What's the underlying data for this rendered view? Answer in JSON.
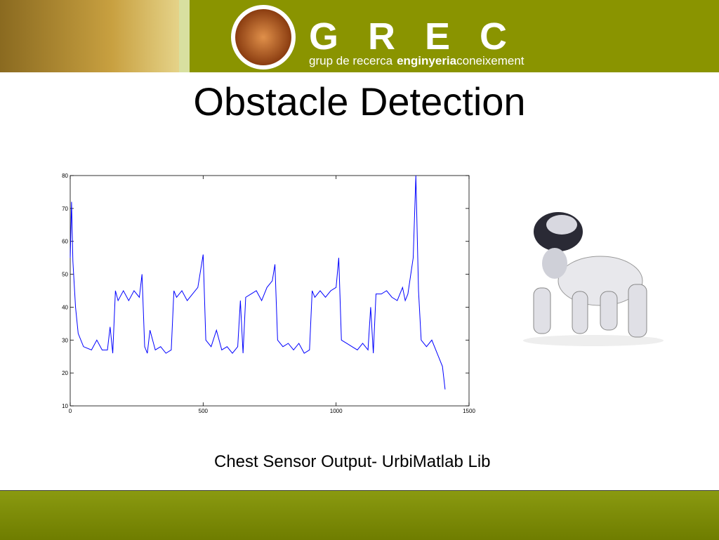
{
  "header": {
    "logo_text": "GREC",
    "tagline_start": "grup de recerca",
    "tagline_bold": "enginyeria",
    "tagline_end": "coneixement"
  },
  "title": "Obstacle Detection",
  "chart_data": {
    "type": "line",
    "color": "#0000ff",
    "grid": false,
    "x": [
      0,
      5,
      10,
      20,
      30,
      50,
      80,
      100,
      120,
      140,
      150,
      160,
      170,
      180,
      200,
      220,
      240,
      260,
      270,
      280,
      290,
      300,
      320,
      340,
      360,
      380,
      390,
      400,
      420,
      440,
      460,
      480,
      500,
      510,
      530,
      550,
      570,
      590,
      610,
      630,
      640,
      650,
      660,
      680,
      700,
      720,
      740,
      760,
      770,
      780,
      800,
      820,
      840,
      860,
      880,
      900,
      910,
      920,
      940,
      960,
      980,
      1000,
      1010,
      1020,
      1040,
      1060,
      1080,
      1100,
      1120,
      1130,
      1140,
      1150,
      1170,
      1190,
      1210,
      1230,
      1250,
      1260,
      1270,
      1290,
      1300,
      1310,
      1320,
      1340,
      1360,
      1380,
      1400,
      1410
    ],
    "values": [
      55,
      72,
      54,
      40,
      32,
      28,
      27,
      30,
      27,
      27,
      34,
      26,
      45,
      42,
      45,
      42,
      45,
      43,
      50,
      28,
      26,
      33,
      27,
      28,
      26,
      27,
      45,
      43,
      45,
      42,
      44,
      46,
      56,
      30,
      28,
      33,
      27,
      28,
      26,
      28,
      42,
      26,
      43,
      44,
      45,
      42,
      46,
      48,
      53,
      30,
      28,
      29,
      27,
      29,
      26,
      27,
      45,
      43,
      45,
      43,
      45,
      46,
      55,
      30,
      29,
      28,
      27,
      29,
      27,
      40,
      26,
      44,
      44,
      45,
      43,
      42,
      46,
      42,
      44,
      55,
      80,
      45,
      30,
      28,
      30,
      26,
      22,
      15
    ],
    "xlim": [
      0,
      1500
    ],
    "ylim": [
      10,
      80
    ],
    "xticks": [
      0,
      500,
      1000,
      1500
    ],
    "yticks": [
      10,
      20,
      30,
      40,
      50,
      60,
      70,
      80
    ]
  },
  "caption": "Chest Sensor Output- UrbiMatlab Lib"
}
